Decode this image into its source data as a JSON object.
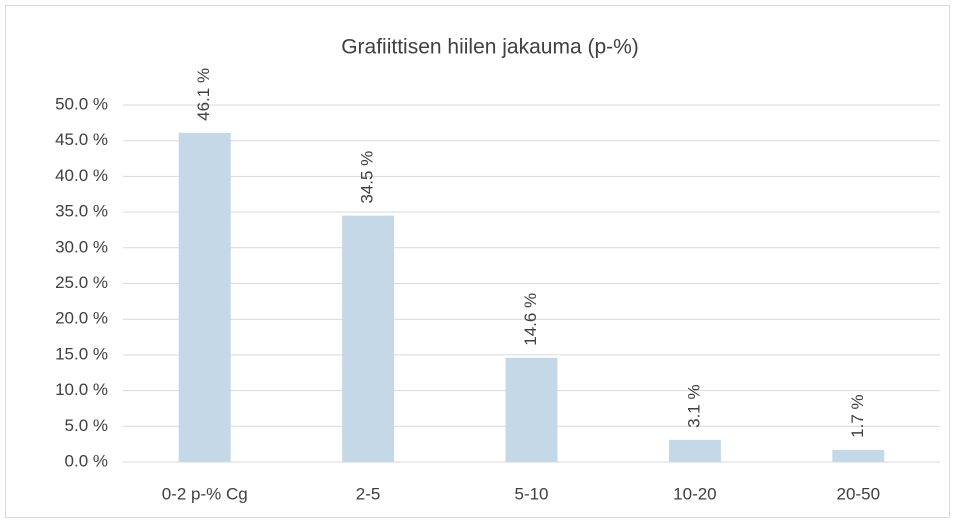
{
  "chart_data": {
    "type": "bar",
    "title": "Grafiittisen hiilen jakauma (p-%)",
    "categories": [
      "0-2 p-% Cg",
      "2-5",
      "5-10",
      "10-20",
      "20-50"
    ],
    "values": [
      46.1,
      34.5,
      14.6,
      3.1,
      1.7
    ],
    "value_labels": [
      "46.1 %",
      "34.5 %",
      "14.6 %",
      "3.1 %",
      "1.7 %"
    ],
    "color": "#c5d8e7",
    "ylim": [
      0,
      50
    ],
    "yticks": [
      {
        "value": 0,
        "label": "0.0 %"
      },
      {
        "value": 5,
        "label": "5.0 %"
      },
      {
        "value": 10,
        "label": "10.0 %"
      },
      {
        "value": 15,
        "label": "15.0 %"
      },
      {
        "value": 20,
        "label": "20.0 %"
      },
      {
        "value": 25,
        "label": "25.0 %"
      },
      {
        "value": 30,
        "label": "30.0 %"
      },
      {
        "value": 35,
        "label": "35.0 %"
      },
      {
        "value": 40,
        "label": "40.0 %"
      },
      {
        "value": 45,
        "label": "45.0 %"
      },
      {
        "value": 50,
        "label": "50.0 %"
      }
    ],
    "grid": true
  }
}
